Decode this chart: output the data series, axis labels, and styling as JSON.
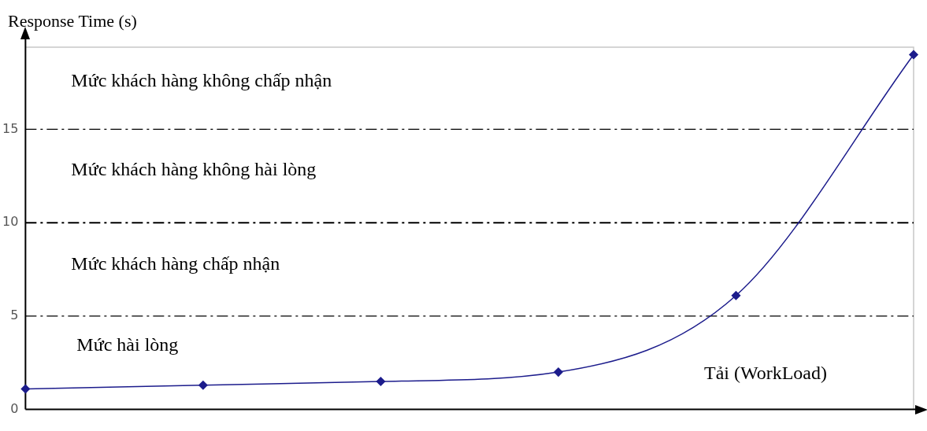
{
  "chart_data": {
    "type": "line",
    "xlabel": "Tải (WorkLoad)",
    "ylabel": "Response Time (s)",
    "categories": [
      null,
      null,
      null,
      null,
      null,
      null
    ],
    "series": [
      {
        "color": "#1c1c8c",
        "values": [
          1.1,
          1.3,
          1.5,
          2,
          6.1,
          19
        ]
      }
    ],
    "ylim": [
      0,
      19.4
    ],
    "yticks": [
      0,
      5,
      10,
      15
    ],
    "grid": false,
    "legend": false,
    "marker": "diamond",
    "ref_lines": [
      {
        "axis": "y",
        "value": 5
      },
      {
        "axis": "y",
        "value": 10
      },
      {
        "axis": "y",
        "value": 15
      }
    ],
    "annotations": [
      "Mức hài lòng",
      "Mức khách hàng chấp nhận",
      "Mức khách hàng không hài lòng",
      "Mức khách hàng không chấp nhận"
    ]
  }
}
